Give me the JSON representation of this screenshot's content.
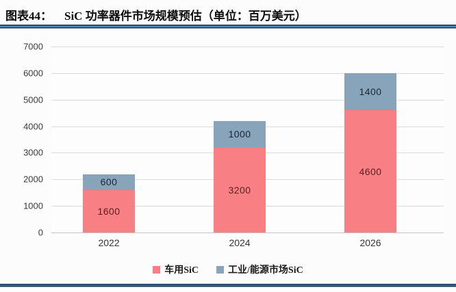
{
  "header": {
    "title_prefix": "图表44：",
    "title_main": "SiC 功率器件市场规模预估（单位：百万美元）"
  },
  "colors": {
    "auto_sic": "#f87f84",
    "industry_sic": "#87a4bb",
    "auto_label": "#5a1e20",
    "industry_label": "#1c2733",
    "gridline": "#dadada",
    "axis_text": "#3a3a3a",
    "rule_dark": "#17344f",
    "rule_light": "#4e86b8"
  },
  "chart_data": {
    "type": "bar",
    "stacked": true,
    "title": "SiC 功率器件市场规模预估",
    "unit": "百万美元",
    "categories": [
      "2022",
      "2024",
      "2026"
    ],
    "series": [
      {
        "name": "车用SiC",
        "color": "#f87f84",
        "label_color": "#5a1e20",
        "values": [
          1600,
          3200,
          4600
        ]
      },
      {
        "name": "工业/能源市场SiC",
        "color": "#87a4bb",
        "label_color": "#1c2733",
        "values": [
          600,
          1000,
          1400
        ]
      }
    ],
    "totals": [
      2200,
      4200,
      6000
    ],
    "ylim": [
      0,
      7000
    ],
    "ytick_step": 1000,
    "yticks": [
      0,
      1000,
      2000,
      3000,
      4000,
      5000,
      6000,
      7000
    ],
    "grid": true,
    "legend_position": "bottom"
  }
}
